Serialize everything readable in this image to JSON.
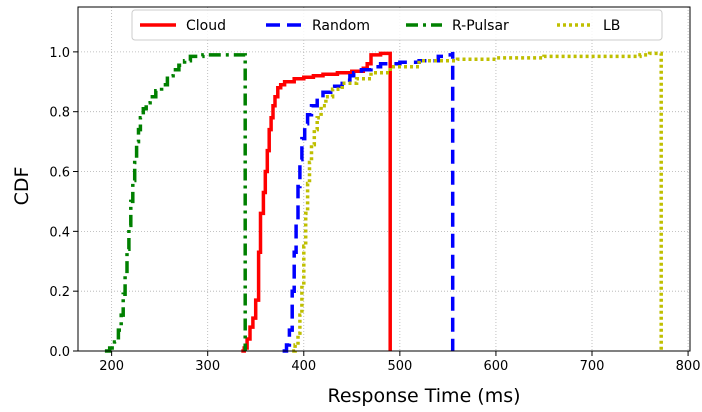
{
  "chart_data": {
    "type": "line",
    "title": "",
    "xlabel": "Response Time (ms)",
    "ylabel": "CDF",
    "xlim": [
      165,
      802
    ],
    "ylim": [
      0,
      1.15
    ],
    "xticks": [
      200,
      300,
      400,
      500,
      600,
      700,
      800
    ],
    "yticks": [
      0.0,
      0.2,
      0.4,
      0.6,
      0.8,
      1.0
    ],
    "xtick_labels": [
      "200",
      "300",
      "400",
      "500",
      "600",
      "700",
      "800"
    ],
    "ytick_labels": [
      "0.0",
      "0.2",
      "0.4",
      "0.6",
      "0.8",
      "1.0"
    ],
    "grid": true,
    "legend_position": "top-center",
    "series": [
      {
        "name": "Cloud",
        "color": "#ff0000",
        "dash": "solid",
        "points": [
          [
            335,
            0.0
          ],
          [
            338,
            0.01
          ],
          [
            341,
            0.04
          ],
          [
            344,
            0.08
          ],
          [
            347,
            0.11
          ],
          [
            350,
            0.17
          ],
          [
            353,
            0.33
          ],
          [
            355,
            0.46
          ],
          [
            358,
            0.53
          ],
          [
            360,
            0.6
          ],
          [
            362,
            0.67
          ],
          [
            364,
            0.74
          ],
          [
            366,
            0.78
          ],
          [
            368,
            0.82
          ],
          [
            370,
            0.85
          ],
          [
            373,
            0.88
          ],
          [
            376,
            0.89
          ],
          [
            380,
            0.9
          ],
          [
            390,
            0.91
          ],
          [
            400,
            0.915
          ],
          [
            410,
            0.92
          ],
          [
            420,
            0.925
          ],
          [
            435,
            0.93
          ],
          [
            450,
            0.935
          ],
          [
            462,
            0.945
          ],
          [
            466,
            0.96
          ],
          [
            470,
            0.99
          ],
          [
            480,
            0.995
          ],
          [
            490,
            0.995
          ],
          [
            490,
            0.0
          ]
        ]
      },
      {
        "name": "Random",
        "color": "#0000ff",
        "dash": "dashed",
        "points": [
          [
            378,
            0.0
          ],
          [
            382,
            0.02
          ],
          [
            385,
            0.07
          ],
          [
            388,
            0.2
          ],
          [
            390,
            0.33
          ],
          [
            392,
            0.44
          ],
          [
            394,
            0.55
          ],
          [
            396,
            0.64
          ],
          [
            398,
            0.71
          ],
          [
            401,
            0.76
          ],
          [
            404,
            0.79
          ],
          [
            408,
            0.82
          ],
          [
            414,
            0.845
          ],
          [
            420,
            0.865
          ],
          [
            428,
            0.885
          ],
          [
            440,
            0.905
          ],
          [
            448,
            0.92
          ],
          [
            452,
            0.93
          ],
          [
            460,
            0.94
          ],
          [
            470,
            0.95
          ],
          [
            480,
            0.96
          ],
          [
            500,
            0.965
          ],
          [
            520,
            0.97
          ],
          [
            540,
            0.985
          ],
          [
            550,
            0.99
          ],
          [
            555,
            1.0
          ],
          [
            555,
            0.0
          ]
        ]
      },
      {
        "name": "R-Pulsar",
        "color": "#008000",
        "dash": "dashdot",
        "points": [
          [
            193,
            0.0
          ],
          [
            198,
            0.01
          ],
          [
            203,
            0.03
          ],
          [
            207,
            0.07
          ],
          [
            210,
            0.12
          ],
          [
            212,
            0.19
          ],
          [
            214,
            0.26
          ],
          [
            216,
            0.34
          ],
          [
            218,
            0.42
          ],
          [
            220,
            0.5
          ],
          [
            222,
            0.57
          ],
          [
            224,
            0.63
          ],
          [
            226,
            0.7
          ],
          [
            228,
            0.74
          ],
          [
            230,
            0.78
          ],
          [
            233,
            0.81
          ],
          [
            236,
            0.83
          ],
          [
            240,
            0.85
          ],
          [
            246,
            0.87
          ],
          [
            252,
            0.89
          ],
          [
            258,
            0.92
          ],
          [
            264,
            0.94
          ],
          [
            270,
            0.955
          ],
          [
            276,
            0.97
          ],
          [
            282,
            0.985
          ],
          [
            295,
            0.99
          ],
          [
            320,
            0.99
          ],
          [
            339,
            0.99
          ],
          [
            339,
            0.0
          ]
        ]
      },
      {
        "name": "LB",
        "color": "#bfbf00",
        "dash": "dotted",
        "points": [
          [
            388,
            0.0
          ],
          [
            391,
            0.02
          ],
          [
            394,
            0.06
          ],
          [
            396,
            0.12
          ],
          [
            398,
            0.22
          ],
          [
            400,
            0.35
          ],
          [
            402,
            0.46
          ],
          [
            404,
            0.56
          ],
          [
            406,
            0.63
          ],
          [
            408,
            0.69
          ],
          [
            411,
            0.74
          ],
          [
            414,
            0.78
          ],
          [
            418,
            0.82
          ],
          [
            423,
            0.85
          ],
          [
            430,
            0.875
          ],
          [
            440,
            0.895
          ],
          [
            455,
            0.91
          ],
          [
            470,
            0.93
          ],
          [
            490,
            0.95
          ],
          [
            520,
            0.97
          ],
          [
            560,
            0.975
          ],
          [
            600,
            0.98
          ],
          [
            650,
            0.985
          ],
          [
            700,
            0.985
          ],
          [
            750,
            0.99
          ],
          [
            760,
            0.995
          ],
          [
            772,
            0.995
          ],
          [
            772,
            0.0
          ]
        ]
      }
    ]
  }
}
